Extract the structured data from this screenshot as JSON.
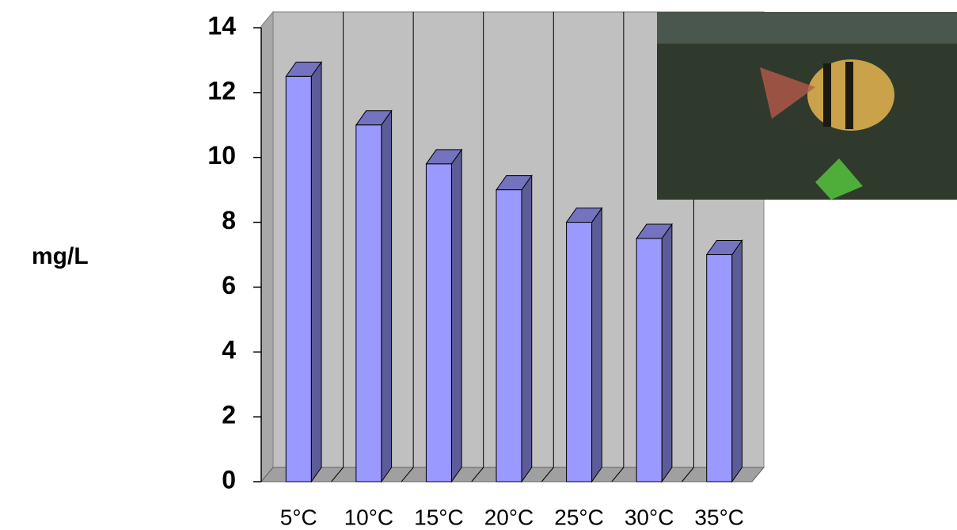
{
  "chart_data": {
    "type": "bar3d",
    "y_label": "mg/L",
    "categories": [
      "5°C",
      "10°C",
      "15°C",
      "20°C",
      "25°C",
      "30°C",
      "35°C"
    ],
    "values": [
      12.5,
      11,
      9.8,
      9,
      8,
      7.5,
      7
    ],
    "color": "#9999ff",
    "ylim": [
      0,
      14
    ],
    "yticks": [
      0,
      2,
      4,
      6,
      8,
      10,
      12,
      14
    ],
    "grid": false
  }
}
